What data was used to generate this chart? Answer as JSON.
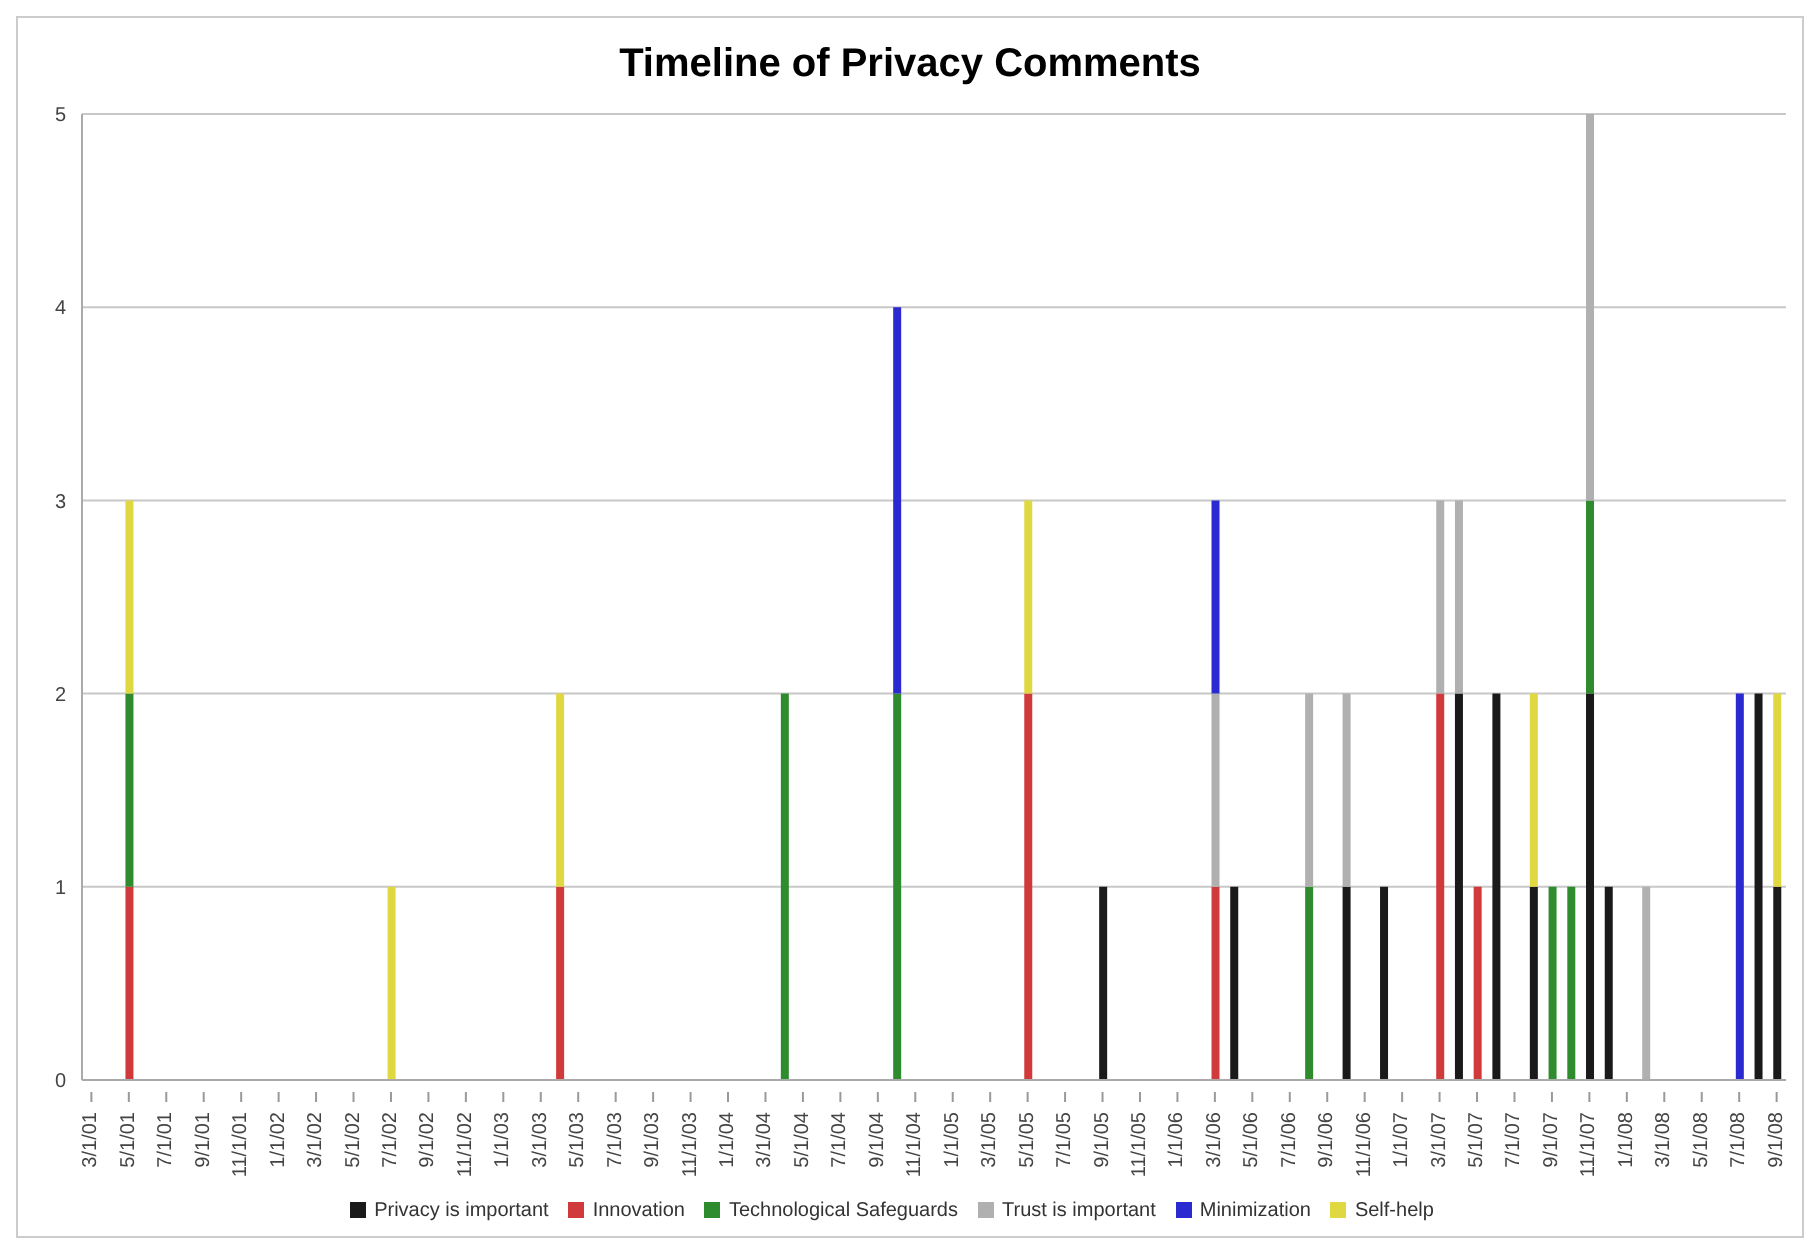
{
  "chart_data": {
    "type": "bar",
    "title": "Timeline of Privacy Comments",
    "stacked": true,
    "grid": "y",
    "legend": "bottom",
    "ylim": [
      0,
      5
    ],
    "yticks": [
      0,
      1,
      2,
      3,
      4,
      5
    ],
    "categories": [
      "3/1/01",
      null,
      "5/1/01",
      null,
      "7/1/01",
      null,
      "9/1/01",
      null,
      "11/1/01",
      null,
      "1/1/02",
      null,
      "3/1/02",
      null,
      "5/1/02",
      null,
      "7/1/02",
      null,
      "9/1/02",
      null,
      "11/1/02",
      null,
      "1/1/03",
      null,
      "3/1/03",
      null,
      "5/1/03",
      null,
      "7/1/03",
      null,
      "9/1/03",
      null,
      "11/1/03",
      null,
      "1/1/04",
      null,
      "3/1/04",
      null,
      "5/1/04",
      null,
      "7/1/04",
      null,
      "9/1/04",
      null,
      "11/1/04",
      null,
      "1/1/05",
      null,
      "3/1/05",
      null,
      "5/1/05",
      null,
      "7/1/05",
      null,
      "9/1/05",
      null,
      "11/1/05",
      null,
      "1/1/06",
      null,
      "3/1/06",
      null,
      "5/1/06",
      null,
      "7/1/06",
      null,
      "9/1/06",
      null,
      "11/1/06",
      null,
      "1/1/07",
      null,
      "3/1/07",
      null,
      "5/1/07",
      null,
      "7/1/07",
      null,
      "9/1/07",
      null,
      "11/1/07",
      null,
      "1/1/08",
      null,
      "3/1/08",
      null,
      "5/1/08",
      null,
      "7/1/08",
      null,
      "9/1/08"
    ],
    "series": [
      {
        "name": "Privacy is important",
        "color": "#1a1a1a",
        "values": [
          0,
          0,
          0,
          0,
          0,
          0,
          0,
          0,
          0,
          0,
          0,
          0,
          0,
          0,
          0,
          0,
          0,
          0,
          0,
          0,
          0,
          0,
          0,
          0,
          0,
          0,
          0,
          0,
          0,
          0,
          0,
          0,
          0,
          0,
          0,
          0,
          0,
          0,
          0,
          0,
          0,
          0,
          0,
          0,
          0,
          0,
          0,
          0,
          0,
          0,
          0,
          0,
          0,
          0,
          1,
          0,
          0,
          0,
          0,
          0,
          0,
          1,
          0,
          0,
          0,
          0,
          0,
          1,
          0,
          1,
          0,
          0,
          0,
          2,
          0,
          2,
          0,
          1,
          0,
          0,
          2,
          1,
          0,
          0,
          0,
          0,
          0,
          0,
          0,
          2,
          1
        ]
      },
      {
        "name": "Innovation",
        "color": "#d03a3a",
        "values": [
          0,
          0,
          1,
          0,
          0,
          0,
          0,
          0,
          0,
          0,
          0,
          0,
          0,
          0,
          0,
          0,
          0,
          0,
          0,
          0,
          0,
          0,
          0,
          0,
          0,
          1,
          0,
          0,
          0,
          0,
          0,
          0,
          0,
          0,
          0,
          0,
          0,
          0,
          0,
          0,
          0,
          0,
          0,
          0,
          0,
          0,
          0,
          0,
          0,
          0,
          2,
          0,
          0,
          0,
          0,
          0,
          0,
          0,
          0,
          0,
          1,
          0,
          0,
          0,
          0,
          0,
          0,
          0,
          0,
          0,
          0,
          0,
          2,
          0,
          1,
          0,
          0,
          0,
          0,
          0,
          0,
          0,
          0,
          0,
          0,
          0,
          0,
          0,
          0,
          0,
          0
        ]
      },
      {
        "name": "Technological Safeguards",
        "color": "#2e8b2e",
        "values": [
          0,
          0,
          1,
          0,
          0,
          0,
          0,
          0,
          0,
          0,
          0,
          0,
          0,
          0,
          0,
          0,
          0,
          0,
          0,
          0,
          0,
          0,
          0,
          0,
          0,
          0,
          0,
          0,
          0,
          0,
          0,
          0,
          0,
          0,
          0,
          0,
          0,
          2,
          0,
          0,
          0,
          0,
          0,
          2,
          0,
          0,
          0,
          0,
          0,
          0,
          0,
          0,
          0,
          0,
          0,
          0,
          0,
          0,
          0,
          0,
          0,
          0,
          0,
          0,
          0,
          1,
          0,
          0,
          0,
          0,
          0,
          0,
          0,
          0,
          0,
          0,
          0,
          0,
          1,
          1,
          1,
          0,
          0,
          0,
          0,
          0,
          0,
          0,
          0,
          0,
          0
        ]
      },
      {
        "name": "Trust is important",
        "color": "#b0b0b0",
        "values": [
          0,
          0,
          0,
          0,
          0,
          0,
          0,
          0,
          0,
          0,
          0,
          0,
          0,
          0,
          0,
          0,
          0,
          0,
          0,
          0,
          0,
          0,
          0,
          0,
          0,
          0,
          0,
          0,
          0,
          0,
          0,
          0,
          0,
          0,
          0,
          0,
          0,
          0,
          0,
          0,
          0,
          0,
          0,
          0,
          0,
          0,
          0,
          0,
          0,
          0,
          0,
          0,
          0,
          0,
          0,
          0,
          0,
          0,
          0,
          0,
          1,
          0,
          0,
          0,
          0,
          1,
          0,
          1,
          0,
          0,
          0,
          0,
          1,
          1,
          0,
          0,
          0,
          0,
          0,
          0,
          2,
          0,
          0,
          1,
          0,
          0,
          0,
          0,
          0,
          0,
          0
        ]
      },
      {
        "name": "Minimization",
        "color": "#2a2ad0",
        "values": [
          0,
          0,
          0,
          0,
          0,
          0,
          0,
          0,
          0,
          0,
          0,
          0,
          0,
          0,
          0,
          0,
          0,
          0,
          0,
          0,
          0,
          0,
          0,
          0,
          0,
          0,
          0,
          0,
          0,
          0,
          0,
          0,
          0,
          0,
          0,
          0,
          0,
          0,
          0,
          0,
          0,
          0,
          0,
          2,
          0,
          0,
          0,
          0,
          0,
          0,
          0,
          0,
          0,
          0,
          0,
          0,
          0,
          0,
          0,
          0,
          1,
          0,
          0,
          0,
          0,
          0,
          0,
          0,
          0,
          0,
          0,
          0,
          0,
          0,
          0,
          0,
          0,
          0,
          0,
          0,
          0,
          0,
          0,
          0,
          0,
          0,
          0,
          0,
          2,
          0,
          0
        ]
      },
      {
        "name": "Self-help",
        "color": "#e0d840",
        "values": [
          0,
          0,
          1,
          0,
          0,
          0,
          0,
          0,
          0,
          0,
          0,
          0,
          0,
          0,
          0,
          0,
          1,
          0,
          0,
          0,
          0,
          0,
          0,
          0,
          0,
          1,
          0,
          0,
          0,
          0,
          0,
          0,
          0,
          0,
          0,
          0,
          0,
          0,
          0,
          0,
          0,
          0,
          0,
          0,
          0,
          0,
          0,
          0,
          0,
          0,
          1,
          0,
          0,
          0,
          0,
          0,
          0,
          0,
          0,
          0,
          0,
          0,
          0,
          0,
          0,
          0,
          0,
          0,
          0,
          0,
          0,
          0,
          0,
          0,
          0,
          0,
          0,
          1,
          0,
          0,
          0,
          0,
          0,
          0,
          0,
          0,
          0,
          0,
          0,
          0,
          1
        ]
      }
    ]
  }
}
